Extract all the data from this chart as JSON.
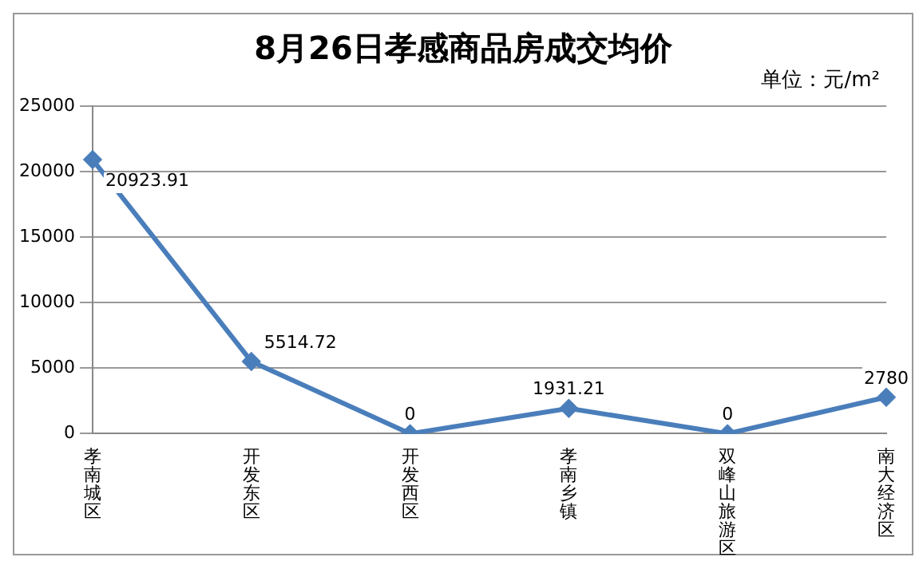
{
  "chart_data": {
    "type": "line",
    "title": "8月26日孝感商品房成交均价",
    "annotations": [
      "单位：元/m²"
    ],
    "categories": [
      "孝南城区",
      "开发东区",
      "开发西区",
      "孝南乡镇",
      "双峰山旅游区",
      "南大经济区"
    ],
    "series": [
      {
        "color": "#4a7ebb",
        "values": [
          20923.91,
          5514.72,
          0,
          1931.21,
          0,
          2780
        ]
      }
    ],
    "ylim": [
      0,
      25000
    ],
    "yticks": [
      0,
      5000,
      10000,
      15000,
      20000,
      25000
    ],
    "grid": "y",
    "legend": false,
    "marker": "diamond",
    "line_style": "solid",
    "data_labels": true
  }
}
